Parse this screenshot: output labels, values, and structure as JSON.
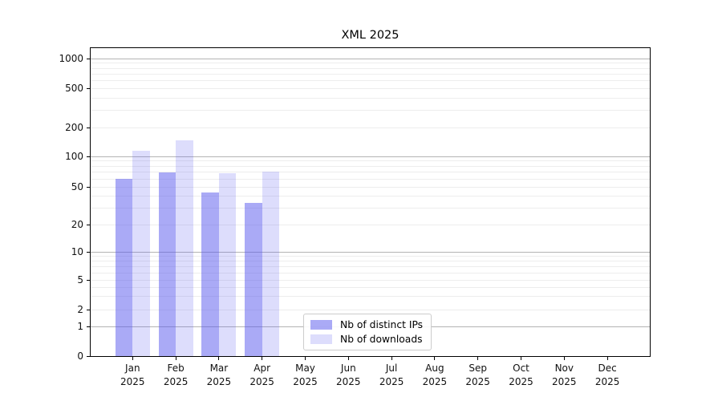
{
  "chart_data": {
    "type": "bar",
    "title": "XML 2025",
    "categories": [
      "Jan",
      "Feb",
      "Mar",
      "Apr",
      "May",
      "Jun",
      "Jul",
      "Aug",
      "Sep",
      "Oct",
      "Nov",
      "Dec"
    ],
    "category_year": "2025",
    "series": [
      {
        "name": "Nb of distinct IPs",
        "color": "#5555ee",
        "alpha": 0.5,
        "values": [
          60,
          70,
          44,
          34,
          null,
          null,
          null,
          null,
          null,
          null,
          null,
          null
        ]
      },
      {
        "name": "Nb of downloads",
        "color": "#5555ee",
        "alpha": 0.2,
        "values": [
          115,
          148,
          68,
          71,
          null,
          null,
          null,
          null,
          null,
          null,
          null,
          null
        ]
      }
    ],
    "y_axis": {
      "scale": "symlog",
      "ticks": [
        1000,
        500,
        200,
        100,
        50,
        20,
        10,
        5,
        2,
        1,
        0
      ],
      "major_gridline_values": [
        1000,
        100,
        10,
        1
      ],
      "minor_gridline_values": [
        900,
        800,
        700,
        600,
        500,
        400,
        300,
        200,
        90,
        80,
        70,
        60,
        50,
        40,
        30,
        20,
        9,
        8,
        7,
        6,
        5,
        4,
        3,
        2
      ]
    },
    "legend": {
      "position": "lower center"
    },
    "grid": true,
    "colors": {
      "bar_base": "#5555ee",
      "major_grid": "#b4b4b4",
      "minor_grid": "#ededed",
      "axis": "#000000",
      "legend_border": "#cccccc"
    }
  }
}
